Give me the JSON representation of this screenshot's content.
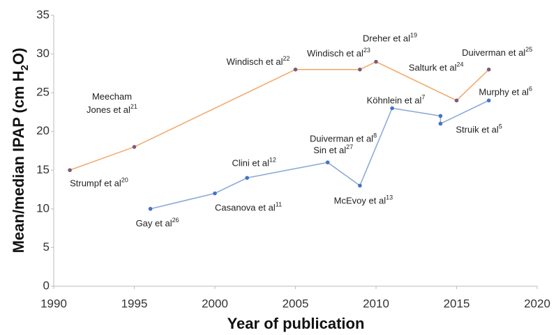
{
  "chart_data": {
    "type": "line",
    "x_label": "Year of publication",
    "y_label": {
      "text": "Mean/median IPAP (cm H",
      "sub": "2",
      "end": "O)"
    },
    "xlim": [
      1990,
      2020
    ],
    "xticks": [
      1990,
      1995,
      2000,
      2005,
      2010,
      2015,
      2020
    ],
    "ylim": [
      0,
      35
    ],
    "yticks": [
      0,
      5,
      10,
      15,
      20,
      25,
      30,
      35
    ],
    "grid": false,
    "series": [
      {
        "color": "#f2aa6e",
        "marker_color": "#7b5b7e",
        "x": [
          1991,
          1995,
          2005,
          2009,
          2010,
          2015,
          2017
        ],
        "values": [
          15,
          18,
          28,
          28,
          29,
          24,
          28
        ],
        "point_labels": [
          {
            "lines": [
              "Strumpf et al"
            ],
            "sup": "20"
          },
          {
            "lines": [
              "Meecham",
              "Jones et al"
            ],
            "sup": "21"
          },
          {
            "lines": [
              "Windisch et al"
            ],
            "sup": "22"
          },
          {
            "lines": [
              "Windisch et al"
            ],
            "sup": "23"
          },
          {
            "lines": [
              "Dreher et al"
            ],
            "sup": "19"
          },
          {
            "lines": [
              "Salturk et al"
            ],
            "sup": "24"
          },
          {
            "lines": [
              "Duiverman et al"
            ],
            "sup": "25"
          }
        ]
      },
      {
        "color": "#8eaad6",
        "marker_color": "#4472c4",
        "x": [
          1996,
          2000,
          2002,
          2007,
          2009,
          2011,
          2014,
          2014,
          2017
        ],
        "values": [
          10,
          12,
          14,
          16,
          13,
          23,
          22,
          21,
          24
        ],
        "point_labels": [
          {
            "lines": [
              "Gay et al"
            ],
            "sup": "26"
          },
          {
            "lines": [
              "Casanova et al"
            ],
            "sup": "11"
          },
          {
            "lines": [
              "Clini et al"
            ],
            "sup": "12"
          },
          {
            "lines": [
              "Sin et al"
            ],
            "sup": "27"
          },
          {
            "lines": [
              "McEvoy et al"
            ],
            "sup": "13"
          },
          {
            "lines": [
              "Duiverman et al"
            ],
            "sup": "8"
          },
          {
            "lines": [
              "Köhnlein et al"
            ],
            "sup": "7"
          },
          {
            "lines": [
              "Struik et al"
            ],
            "sup": "5"
          },
          {
            "lines": [
              "Murphy et al"
            ],
            "sup": "6"
          }
        ]
      }
    ]
  }
}
